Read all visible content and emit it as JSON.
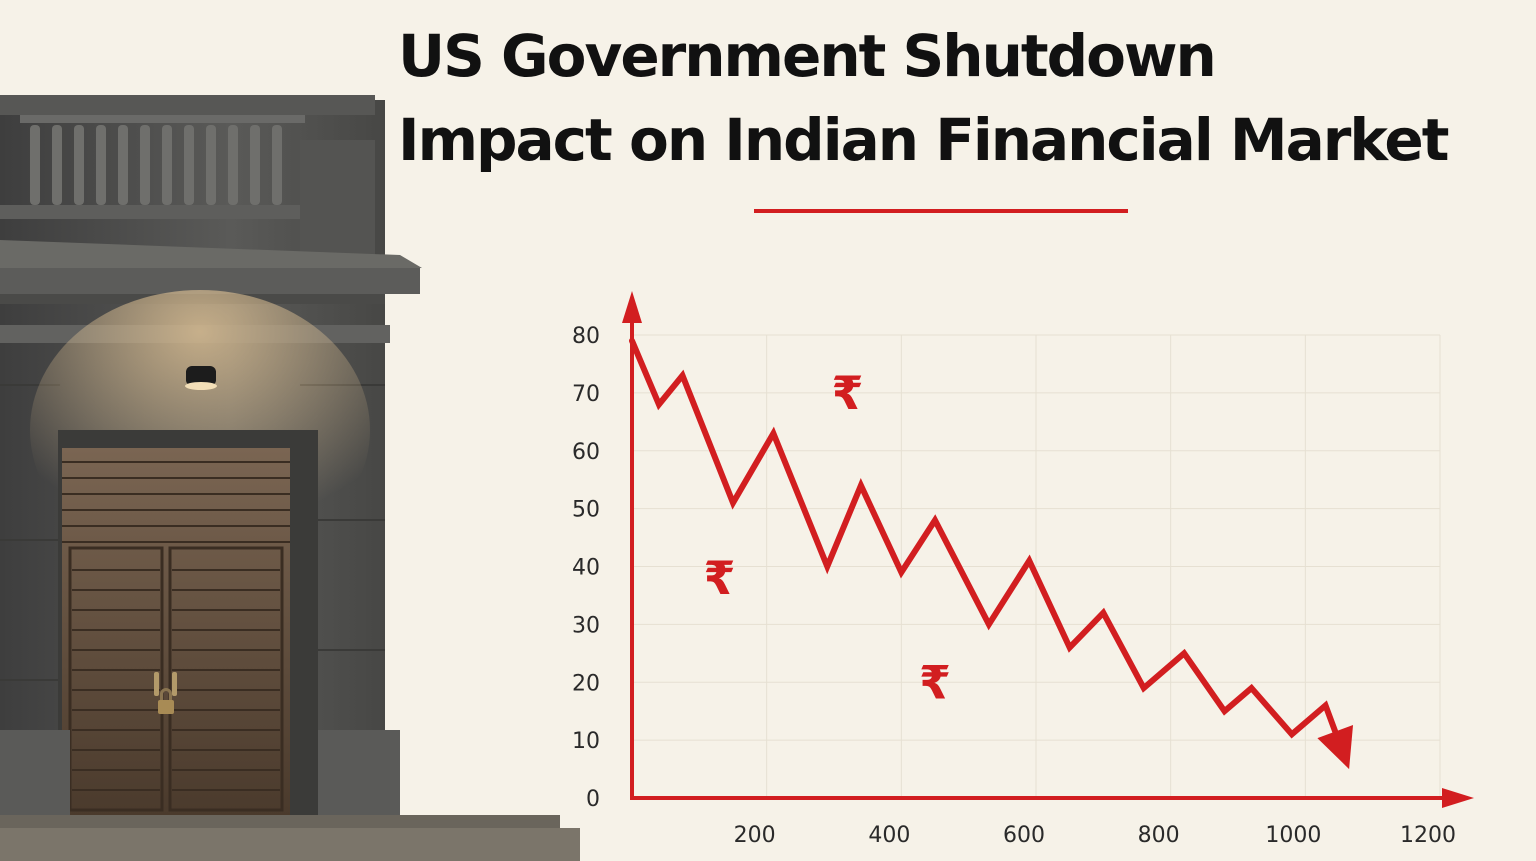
{
  "title": {
    "line1": "US Government Shutdown",
    "line2": "Impact on Indian Financial Market"
  },
  "colors": {
    "accent": "#d21e20",
    "background": "#f6f2e8",
    "title_text": "#111111",
    "stone": "#4e4e4e",
    "door": "#5a4636"
  },
  "rupee_symbol": "₹",
  "rupee_marks": [
    {
      "x": 320,
      "y": 70
    },
    {
      "x": 130,
      "y": 38
    },
    {
      "x": 450,
      "y": 20
    }
  ],
  "chart_data": {
    "type": "line",
    "title": "",
    "xlabel": "",
    "ylabel": "",
    "x_ticks": [
      200,
      400,
      600,
      800,
      1000,
      1200
    ],
    "y_ticks": [
      0,
      10,
      20,
      30,
      40,
      50,
      60,
      70,
      80
    ],
    "xlim": [
      0,
      1200
    ],
    "ylim": [
      0,
      80
    ],
    "grid": true,
    "series": [
      {
        "x": [
          0,
          40,
          75,
          150,
          210,
          290,
          340,
          400,
          450,
          530,
          590,
          650,
          700,
          760,
          820,
          880,
          920,
          980,
          1030,
          1065
        ],
        "y": [
          79,
          68,
          73,
          51,
          63,
          40,
          54,
          39,
          48,
          30,
          41,
          26,
          32,
          19,
          25,
          15,
          19,
          11,
          16,
          5
        ]
      }
    ]
  }
}
